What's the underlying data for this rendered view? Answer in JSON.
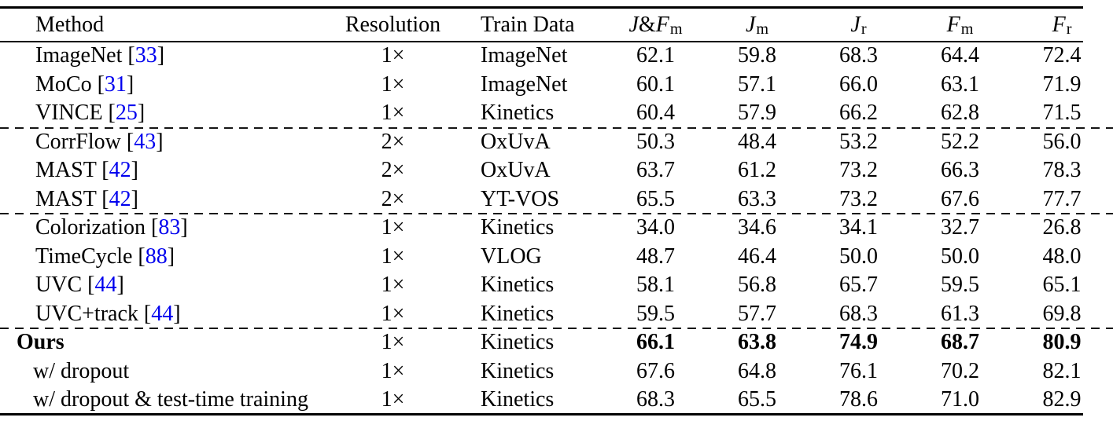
{
  "colors": {
    "citation_blue": "#0000EE",
    "text": "#000000",
    "background": "#FFFFFF"
  },
  "table": {
    "columns": [
      {
        "id": "method",
        "label": "Method"
      },
      {
        "id": "resolution",
        "label": "Resolution"
      },
      {
        "id": "train-data",
        "label": "Train Data"
      },
      {
        "id": "jf-mean",
        "math_main": "J&F",
        "math_sub": "m"
      },
      {
        "id": "j-mean",
        "math_main": "J",
        "math_sub": "m"
      },
      {
        "id": "j-recall",
        "math_main": "J",
        "math_sub": "r"
      },
      {
        "id": "f-mean",
        "math_main": "F",
        "math_sub": "m"
      },
      {
        "id": "f-recall",
        "math_main": "F",
        "math_sub": "r"
      }
    ],
    "rows": [
      {
        "method": "ImageNet",
        "cite": "33",
        "resolution": "1×",
        "train_data": "ImageNet",
        "values": [
          "62.1",
          "59.8",
          "68.3",
          "64.4",
          "72.4"
        ],
        "style": "normal",
        "bold": false,
        "dashed_before": false
      },
      {
        "method": "MoCo",
        "cite": "31",
        "resolution": "1×",
        "train_data": "ImageNet",
        "values": [
          "60.1",
          "57.1",
          "66.0",
          "63.1",
          "71.9"
        ],
        "style": "normal",
        "bold": false,
        "dashed_before": false
      },
      {
        "method": "VINCE",
        "cite": "25",
        "resolution": "1×",
        "train_data": "Kinetics",
        "values": [
          "60.4",
          "57.9",
          "66.2",
          "62.8",
          "71.5"
        ],
        "style": "normal",
        "bold": false,
        "dashed_before": false
      },
      {
        "method": "CorrFlow",
        "cite": "43",
        "resolution": "2×",
        "train_data": "OxUvA",
        "values": [
          "50.3",
          "48.4",
          "53.2",
          "52.2",
          "56.0"
        ],
        "style": "normal",
        "bold": false,
        "dashed_before": true
      },
      {
        "method": "MAST",
        "cite": "42",
        "resolution": "2×",
        "train_data": "OxUvA",
        "values": [
          "63.7",
          "61.2",
          "73.2",
          "66.3",
          "78.3"
        ],
        "style": "normal",
        "bold": false,
        "dashed_before": false
      },
      {
        "method": "MAST",
        "cite": "42",
        "resolution": "2×",
        "train_data": "YT-VOS",
        "values": [
          "65.5",
          "63.3",
          "73.2",
          "67.6",
          "77.7"
        ],
        "style": "normal",
        "bold": false,
        "dashed_before": false
      },
      {
        "method": "Colorization",
        "cite": "83",
        "resolution": "1×",
        "train_data": "Kinetics",
        "values": [
          "34.0",
          "34.6",
          "34.1",
          "32.7",
          "26.8"
        ],
        "style": "normal",
        "bold": false,
        "dashed_before": true
      },
      {
        "method": "TimeCycle",
        "cite": "88",
        "resolution": "1×",
        "train_data": "VLOG",
        "values": [
          "48.7",
          "46.4",
          "50.0",
          "50.0",
          "48.0"
        ],
        "style": "normal",
        "bold": false,
        "dashed_before": false
      },
      {
        "method": "UVC",
        "cite": "44",
        "resolution": "1×",
        "train_data": "Kinetics",
        "values": [
          "58.1",
          "56.8",
          "65.7",
          "59.5",
          "65.1"
        ],
        "style": "normal",
        "bold": false,
        "dashed_before": false
      },
      {
        "method": "UVC+track",
        "cite": "44",
        "resolution": "1×",
        "train_data": "Kinetics",
        "values": [
          "59.5",
          "57.7",
          "68.3",
          "61.3",
          "69.8"
        ],
        "style": "normal",
        "bold": false,
        "dashed_before": false
      },
      {
        "method": "Ours",
        "cite": "",
        "resolution": "1×",
        "train_data": "Kinetics",
        "values": [
          "66.1",
          "63.8",
          "74.9",
          "68.7",
          "80.9"
        ],
        "style": "ours",
        "bold": true,
        "dashed_before": true
      },
      {
        "method": "w/ dropout",
        "cite": "",
        "resolution": "1×",
        "train_data": "Kinetics",
        "values": [
          "67.6",
          "64.8",
          "76.1",
          "70.2",
          "82.1"
        ],
        "style": "variant",
        "bold": false,
        "dashed_before": false
      },
      {
        "method": "w/ dropout & test-time training",
        "cite": "",
        "resolution": "1×",
        "train_data": "Kinetics",
        "values": [
          "68.3",
          "65.5",
          "78.6",
          "71.0",
          "82.9"
        ],
        "style": "variant",
        "bold": false,
        "dashed_before": false
      }
    ]
  }
}
